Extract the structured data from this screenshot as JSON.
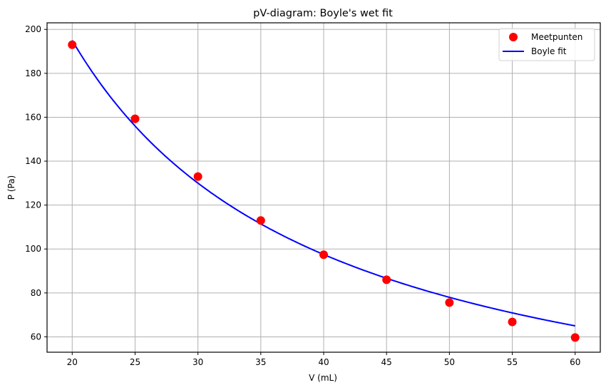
{
  "chart_data": {
    "type": "scatter",
    "title": "pV-diagram: Boyle's wet fit",
    "xlabel": "V (mL)",
    "ylabel": "P (Pa)",
    "xlim": [
      18,
      62
    ],
    "ylim": [
      53,
      203
    ],
    "xticks": [
      20,
      25,
      30,
      35,
      40,
      45,
      50,
      55,
      60
    ],
    "yticks": [
      60,
      80,
      100,
      120,
      140,
      160,
      180,
      200
    ],
    "grid": true,
    "legend_position": "upper right",
    "series": [
      {
        "name": "Meetpunten",
        "kind": "scatter",
        "color": "#ff0000",
        "x": [
          20,
          25,
          30,
          35,
          40,
          45,
          50,
          55,
          60
        ],
        "values": [
          193,
          159.3,
          133,
          113,
          97.4,
          86,
          75.6,
          66.8,
          59.7
        ]
      },
      {
        "name": "Boyle fit",
        "kind": "line",
        "color": "#0000ff",
        "model": "P = k / V",
        "k": 3900,
        "x_range": [
          20,
          60
        ]
      }
    ]
  },
  "legend": {
    "items": [
      {
        "label": "Meetpunten"
      },
      {
        "label": "Boyle fit"
      }
    ]
  }
}
